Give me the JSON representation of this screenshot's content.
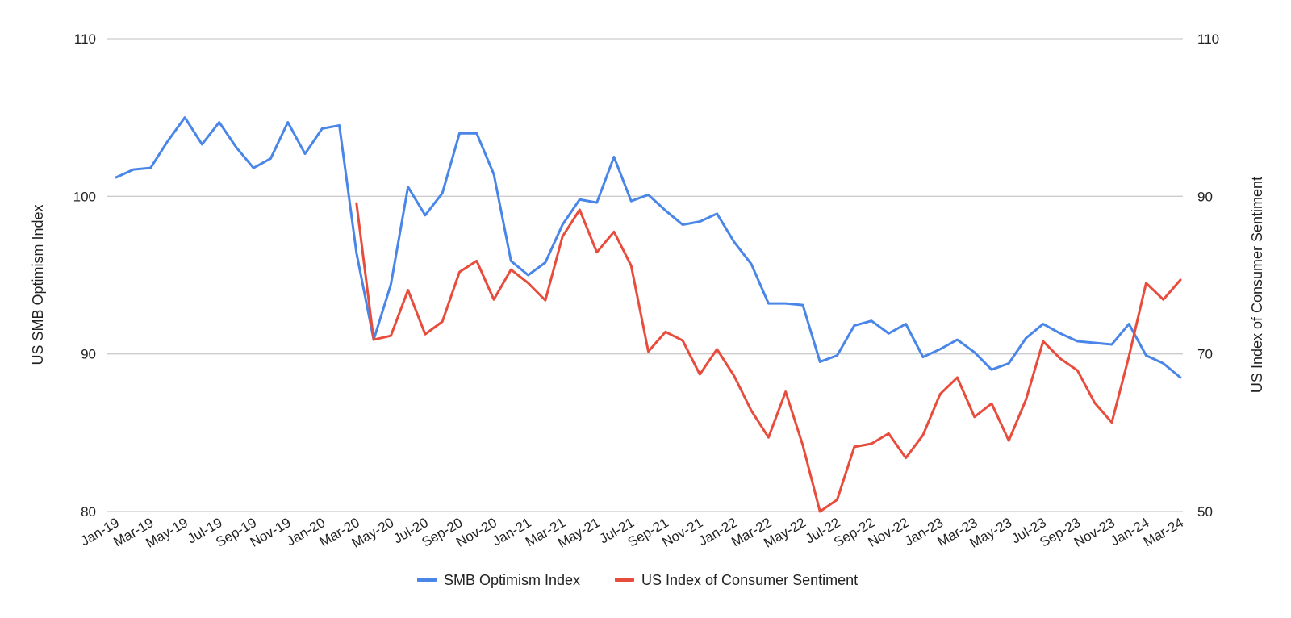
{
  "chart_data": {
    "type": "line",
    "title": "",
    "x": [
      "Jan-19",
      "Feb-19",
      "Mar-19",
      "Apr-19",
      "May-19",
      "Jun-19",
      "Jul-19",
      "Aug-19",
      "Sep-19",
      "Oct-19",
      "Nov-19",
      "Dec-19",
      "Jan-20",
      "Feb-20",
      "Mar-20",
      "Apr-20",
      "May-20",
      "Jun-20",
      "Jul-20",
      "Aug-20",
      "Sep-20",
      "Oct-20",
      "Nov-20",
      "Dec-20",
      "Jan-21",
      "Feb-21",
      "Mar-21",
      "Apr-21",
      "May-21",
      "Jun-21",
      "Jul-21",
      "Aug-21",
      "Sep-21",
      "Oct-21",
      "Nov-21",
      "Dec-21",
      "Jan-22",
      "Feb-22",
      "Mar-22",
      "Apr-22",
      "May-22",
      "Jun-22",
      "Jul-22",
      "Aug-22",
      "Sep-22",
      "Oct-22",
      "Nov-22",
      "Dec-22",
      "Jan-23",
      "Feb-23",
      "Mar-23",
      "Apr-23",
      "May-23",
      "Jun-23",
      "Jul-23",
      "Aug-23",
      "Sep-23",
      "Oct-23",
      "Nov-23",
      "Dec-23",
      "Jan-24",
      "Feb-24",
      "Mar-24"
    ],
    "x_tick_labels": [
      "Jan-19",
      "Mar-19",
      "May-19",
      "Jul-19",
      "Sep-19",
      "Nov-19",
      "Jan-20",
      "Mar-20",
      "May-20",
      "Jul-20",
      "Sep-20",
      "Nov-20",
      "Jan-21",
      "Mar-21",
      "May-21",
      "Jul-21",
      "Sep-21",
      "Nov-21",
      "Jan-22",
      "Mar-22",
      "May-22",
      "Jul-22",
      "Sep-22",
      "Nov-22",
      "Jan-23",
      "Mar-23",
      "May-23",
      "Jul-23",
      "Sep-23",
      "Nov-23",
      "Jan-24",
      "Mar-24"
    ],
    "y_left": {
      "label": "US SMB Optimism Index",
      "range": [
        80,
        110
      ],
      "ticks": [
        80,
        90,
        100,
        110
      ]
    },
    "y_right": {
      "label": "US Index of Consumer Sentiment",
      "range": [
        50,
        110
      ],
      "ticks": [
        50,
        70,
        90,
        110
      ]
    },
    "series": [
      {
        "name": "SMB Optimism Index",
        "axis": "left",
        "color": "#4a86e8",
        "values": [
          101.2,
          101.7,
          101.8,
          103.5,
          105.0,
          103.3,
          104.7,
          103.1,
          101.8,
          102.4,
          104.7,
          102.7,
          104.3,
          104.5,
          96.4,
          90.9,
          94.4,
          100.6,
          98.8,
          100.2,
          104.0,
          104.0,
          101.4,
          95.9,
          95.0,
          95.8,
          98.2,
          99.8,
          99.6,
          102.5,
          99.7,
          100.1,
          99.1,
          98.2,
          98.4,
          98.9,
          97.1,
          95.7,
          93.2,
          93.2,
          93.1,
          89.5,
          89.9,
          91.8,
          92.1,
          91.3,
          91.9,
          89.8,
          90.3,
          90.9,
          90.1,
          89.0,
          89.4,
          91.0,
          91.9,
          91.3,
          90.8,
          90.7,
          90.6,
          91.9,
          89.9,
          89.4,
          88.5
        ]
      },
      {
        "name": "US Index of Consumer Sentiment",
        "axis": "right",
        "color": "#e74c3c",
        "values": [
          null,
          null,
          null,
          null,
          null,
          null,
          null,
          null,
          null,
          null,
          null,
          null,
          null,
          null,
          89.1,
          71.8,
          72.3,
          78.1,
          72.5,
          74.1,
          80.4,
          81.8,
          76.9,
          80.7,
          79.0,
          76.8,
          84.9,
          88.3,
          82.9,
          85.5,
          81.2,
          70.3,
          72.8,
          71.7,
          67.4,
          70.6,
          67.2,
          62.8,
          59.4,
          65.2,
          58.4,
          50.0,
          51.5,
          58.2,
          58.6,
          59.9,
          56.8,
          59.7,
          64.9,
          67.0,
          62.0,
          63.7,
          59.0,
          64.2,
          71.6,
          69.4,
          67.9,
          63.8,
          61.3,
          69.7,
          79.0,
          76.9,
          79.4
        ]
      }
    ],
    "legend": {
      "position": "bottom"
    },
    "grid": true
  }
}
